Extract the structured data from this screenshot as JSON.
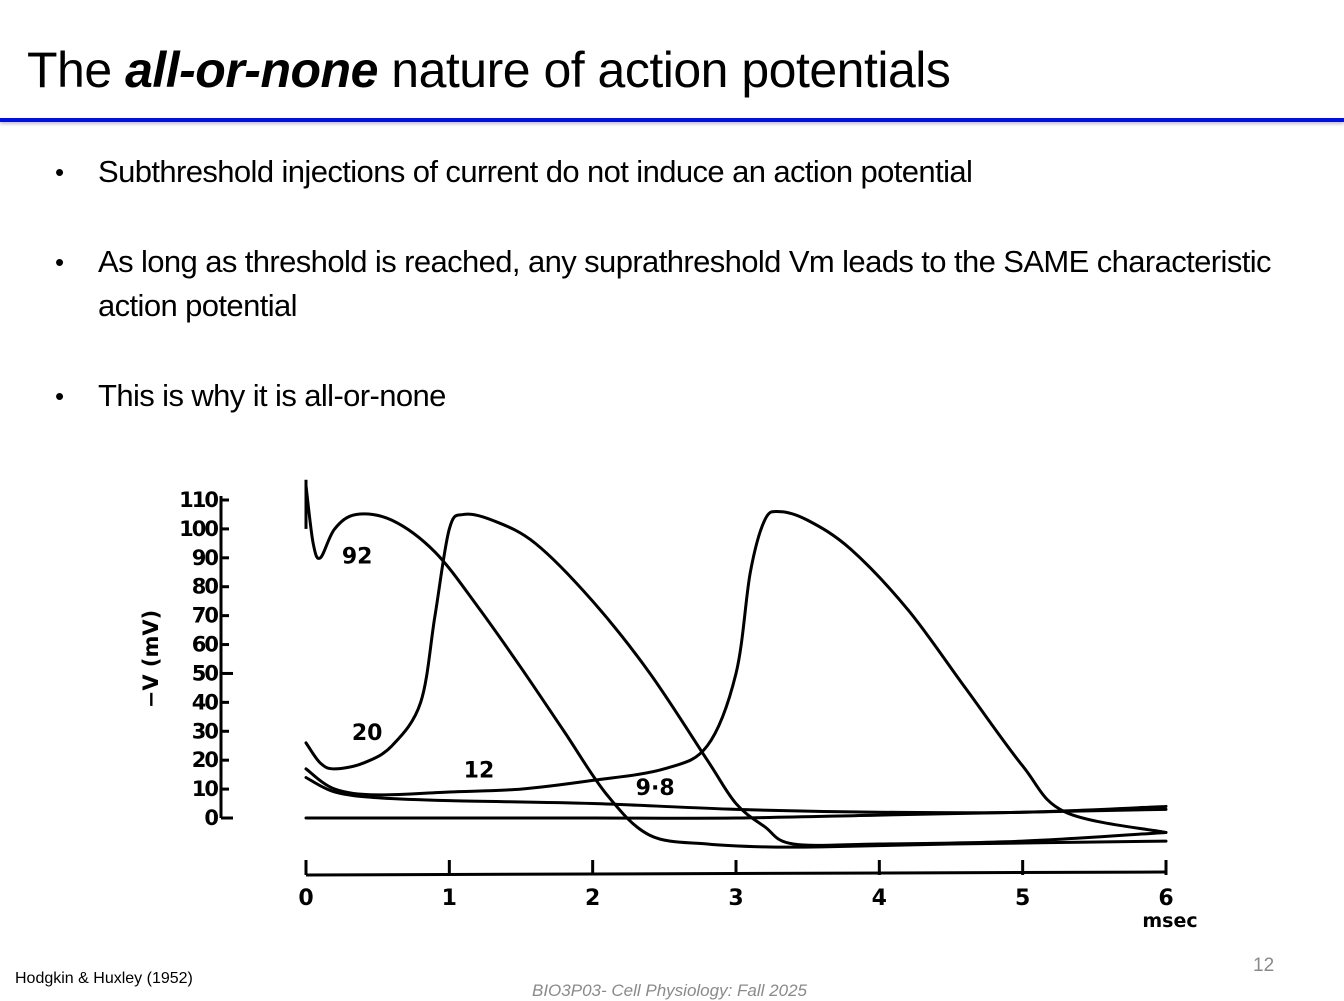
{
  "slide": {
    "title_pre": "The ",
    "title_emphasis": "all-or-none",
    "title_post": " nature of action potentials",
    "accent_color": "#0010e0",
    "bullets": [
      "Subthreshold injections of current do not induce an action potential",
      "As long as threshold is reached, any suprathreshold Vm leads to the SAME characteristic action potential",
      "This is why it is all-or-none"
    ],
    "citation": "Hodgkin & Huxley (1952)",
    "footer": "BIO3P03- Cell Physiology: Fall 2025",
    "page_number": "12"
  },
  "chart_data": {
    "type": "line",
    "title": "",
    "xlabel": "msec",
    "ylabel": "−V (mV)",
    "xlim": [
      0,
      6
    ],
    "ylim": [
      0,
      110
    ],
    "x_ticks": [
      "0",
      "1",
      "2",
      "3",
      "4",
      "5",
      "6"
    ],
    "y_ticks": [
      "0",
      "10",
      "20",
      "30",
      "40",
      "50",
      "60",
      "70",
      "80",
      "90",
      "100",
      "110"
    ],
    "grid": false,
    "legend": "inline curve labels",
    "series": [
      {
        "name": "92",
        "x": [
          0,
          0.05,
          0.1,
          0.2,
          0.35,
          0.6,
          0.9,
          1.2,
          1.5,
          1.8,
          2.1,
          2.4,
          2.8,
          3.2,
          3.6,
          4.5,
          6.0
        ],
        "y": [
          115,
          95,
          90,
          100,
          105,
          103,
          92,
          73,
          52,
          30,
          8,
          -6,
          -9,
          -10,
          -10,
          -9,
          -8
        ]
      },
      {
        "name": "20",
        "x": [
          0,
          0.1,
          0.2,
          0.4,
          0.6,
          0.8,
          0.9,
          1.0,
          1.1,
          1.3,
          1.6,
          2.0,
          2.4,
          2.8,
          3.0,
          3.2,
          3.4,
          4.0,
          5.0,
          6.0
        ],
        "y": [
          26,
          19,
          17,
          19,
          25,
          40,
          70,
          100,
          105,
          103,
          95,
          75,
          50,
          20,
          5,
          -3,
          -9,
          -9,
          -8,
          -5
        ]
      },
      {
        "name": "12",
        "x": [
          0,
          0.2,
          0.5,
          1.0,
          1.5,
          2.0,
          2.5,
          2.8,
          3.0,
          3.1,
          3.2,
          3.3,
          3.5,
          3.8,
          4.2,
          4.6,
          5.0,
          5.3,
          6.0
        ],
        "y": [
          17,
          10,
          8,
          9,
          10,
          13,
          17,
          25,
          50,
          85,
          103,
          106,
          103,
          93,
          72,
          45,
          18,
          2,
          -5
        ]
      },
      {
        "name": "9.8",
        "x": [
          0,
          0.2,
          0.5,
          1.0,
          2.0,
          3.0,
          4.0,
          5.0,
          6.0
        ],
        "y": [
          14,
          9,
          7,
          6,
          5,
          3,
          2,
          2,
          4
        ]
      },
      {
        "name": "baseline",
        "x": [
          0,
          1,
          2,
          3,
          4,
          5,
          6
        ],
        "y": [
          0,
          0,
          0,
          0,
          1,
          2,
          3
        ]
      }
    ],
    "annotations": [
      "92",
      "20",
      "12",
      "9·8"
    ],
    "source": "Hodgkin & Huxley (1952)"
  }
}
